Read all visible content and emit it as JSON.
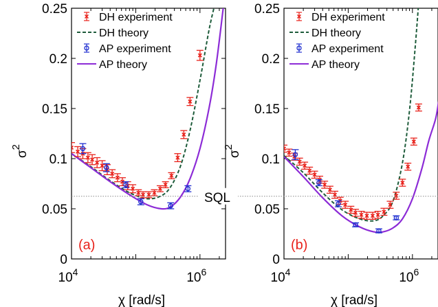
{
  "sql_label": "SQL",
  "sql_level": 0.0625,
  "colors": {
    "dh_exp": "#e8221b",
    "dh_theory": "#1d5b3a",
    "ap_exp": "#1f2fd0",
    "ap_theory": "#8c2bd6",
    "sql": "#888888",
    "panel_label": "#e8221b"
  },
  "chart_data": [
    {
      "type": "scatter",
      "panel_label": "(a)",
      "xlabel": "χ [rad/s]",
      "ylabel": "σ",
      "ylabel_sup": "2",
      "xscale": "log",
      "xlim": [
        10000,
        2500000
      ],
      "ylim": [
        0,
        0.25
      ],
      "xticks": [
        {
          "v": 10000,
          "base": "10",
          "exp": "4"
        },
        {
          "v": 1000000,
          "base": "10",
          "exp": "6"
        }
      ],
      "yticks": [
        "0",
        "0.05",
        "0.1",
        "0.15",
        "0.2",
        "0.25"
      ],
      "legend": [
        "DH experiment",
        "DH theory",
        "AP experiment",
        "AP theory"
      ],
      "legend_position": "top-left",
      "series": [
        {
          "name": "DH experiment",
          "kind": "errorbar",
          "marker": "x",
          "x": [
            10000,
            12500,
            15000,
            18000,
            21000,
            25000,
            30000,
            36000,
            43000,
            52000,
            62000,
            75000,
            90000,
            110000,
            130000,
            160000,
            195000,
            240000,
            290000,
            360000,
            450000,
            560000,
            700000,
            1000000
          ],
          "y": [
            0.111,
            0.107,
            0.105,
            0.101,
            0.099,
            0.096,
            0.093,
            0.089,
            0.085,
            0.081,
            0.077,
            0.073,
            0.07,
            0.066,
            0.064,
            0.064,
            0.066,
            0.07,
            0.074,
            0.083,
            0.101,
            0.124,
            0.157,
            0.203
          ],
          "err": [
            0.005,
            0.005,
            0.005,
            0.005,
            0.005,
            0.005,
            0.005,
            0.005,
            0.004,
            0.004,
            0.004,
            0.004,
            0.004,
            0.003,
            0.003,
            0.003,
            0.003,
            0.003,
            0.003,
            0.003,
            0.004,
            0.004,
            0.004,
            0.005
          ]
        },
        {
          "name": "DH theory",
          "kind": "line",
          "style": "dashed",
          "x": [
            10000,
            20000,
            40000,
            80000,
            150000,
            250000,
            350000,
            500000,
            700000,
            1000000,
            1400000,
            1800000
          ],
          "y": [
            0.105,
            0.092,
            0.078,
            0.066,
            0.06,
            0.063,
            0.072,
            0.093,
            0.128,
            0.178,
            0.23,
            0.26
          ]
        },
        {
          "name": "AP experiment",
          "kind": "errorbar",
          "marker": "o",
          "x": [
            15000,
            35000,
            70000,
            120000,
            350000,
            650000
          ],
          "y": [
            0.11,
            0.091,
            0.074,
            0.057,
            0.053,
            0.07
          ],
          "err": [
            0.005,
            0.004,
            0.003,
            0.003,
            0.003,
            0.003
          ]
        },
        {
          "name": "AP theory",
          "kind": "line",
          "style": "solid",
          "x": [
            10000,
            20000,
            40000,
            80000,
            150000,
            250000,
            350000,
            500000,
            700000,
            1000000,
            1400000,
            1800000,
            2300000
          ],
          "y": [
            0.105,
            0.091,
            0.077,
            0.064,
            0.054,
            0.05,
            0.052,
            0.062,
            0.08,
            0.11,
            0.152,
            0.195,
            0.25
          ]
        }
      ]
    },
    {
      "type": "scatter",
      "panel_label": "(b)",
      "xlabel": "χ [rad/s]",
      "ylabel": "σ",
      "ylabel_sup": "2",
      "xscale": "log",
      "xlim": [
        10000,
        2500000
      ],
      "ylim": [
        0,
        0.25
      ],
      "xticks": [
        {
          "v": 10000,
          "base": "10",
          "exp": "4"
        },
        {
          "v": 1000000,
          "base": "10",
          "exp": "6"
        }
      ],
      "yticks": [
        "0",
        "0.05",
        "0.1",
        "0.15",
        "0.2",
        "0.25"
      ],
      "legend": [
        "DH experiment",
        "DH theory",
        "AP experiment",
        "AP theory"
      ],
      "legend_position": "top-left",
      "series": [
        {
          "name": "DH experiment",
          "kind": "errorbar",
          "marker": "x",
          "x": [
            10000,
            12000,
            14500,
            17500,
            21000,
            25000,
            30000,
            36000,
            43000,
            52000,
            62000,
            75000,
            90000,
            110000,
            130000,
            160000,
            195000,
            240000,
            290000,
            360000,
            450000,
            560000,
            700000,
            850000,
            1050000,
            1250000
          ],
          "y": [
            0.11,
            0.106,
            0.102,
            0.097,
            0.093,
            0.088,
            0.084,
            0.079,
            0.074,
            0.069,
            0.064,
            0.058,
            0.054,
            0.049,
            0.046,
            0.044,
            0.043,
            0.043,
            0.044,
            0.047,
            0.054,
            0.063,
            0.076,
            0.092,
            0.117,
            0.151
          ]
        },
        {
          "name": "DH theory",
          "kind": "line",
          "style": "dashed",
          "x": [
            10000,
            20000,
            40000,
            80000,
            150000,
            250000,
            350000,
            500000,
            700000,
            900000,
            1100000,
            1300000
          ],
          "y": [
            0.103,
            0.086,
            0.066,
            0.049,
            0.04,
            0.038,
            0.043,
            0.058,
            0.096,
            0.148,
            0.21,
            0.27
          ]
        },
        {
          "name": "AP experiment",
          "kind": "errorbar",
          "marker": "o",
          "x": [
            15000,
            35000,
            70000,
            130000,
            300000,
            560000
          ],
          "y": [
            0.104,
            0.076,
            0.055,
            0.034,
            0.028,
            0.041
          ],
          "err": [
            0.005,
            0.003,
            0.003,
            0.002,
            0.002,
            0.002
          ]
        },
        {
          "name": "AP theory",
          "kind": "line",
          "style": "solid",
          "x": [
            10000,
            20000,
            40000,
            80000,
            150000,
            250000,
            350000,
            500000,
            700000,
            1000000,
            1400000,
            1800000,
            2300000,
            2600000
          ],
          "y": [
            0.102,
            0.082,
            0.061,
            0.043,
            0.032,
            0.027,
            0.027,
            0.031,
            0.04,
            0.06,
            0.09,
            0.118,
            0.14,
            0.16
          ]
        }
      ]
    }
  ]
}
